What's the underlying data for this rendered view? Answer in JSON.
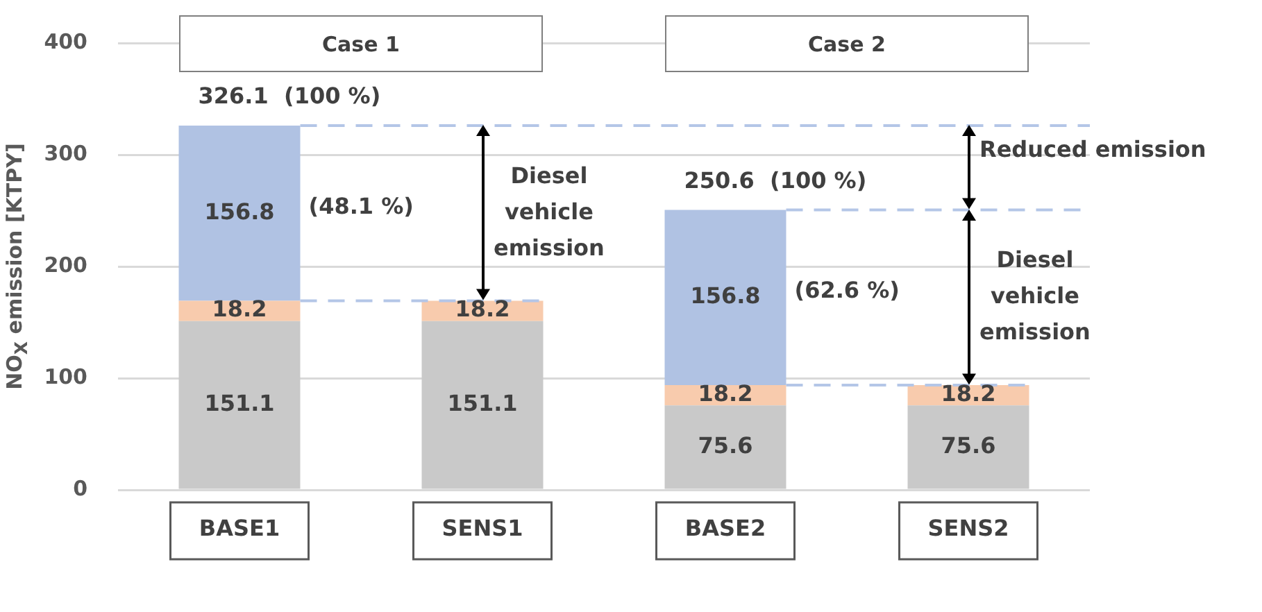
{
  "chart_data": {
    "type": "bar",
    "stacked": true,
    "ylabel": "NO$_{X}$ emission  [KTPY]",
    "categories": [
      "BASE1",
      "SENS1",
      "BASE2",
      "SENS2"
    ],
    "series": [
      {
        "color": "#c9c9c9",
        "values": [
          151.1,
          151.1,
          75.6,
          75.6
        ]
      },
      {
        "color": "#f8cbad",
        "values": [
          18.2,
          18.2,
          18.2,
          18.2
        ]
      },
      {
        "color": "#b0c2e3",
        "values": [
          156.8,
          null,
          156.8,
          null
        ]
      }
    ],
    "ylim": [
      0,
      400
    ],
    "yticks": [
      0,
      100,
      200,
      300,
      400
    ],
    "grid": "y",
    "legend": false,
    "data_labels": true,
    "totals": [
      "326.1  (100 %)",
      null,
      "250.6  (100 %)",
      null
    ],
    "ref_lines": [
      {
        "axis": "y",
        "value": 326.1,
        "color": "#b4c6e7",
        "line_style": "dashed"
      },
      {
        "axis": "y",
        "value": 169.3,
        "color": "#b4c6e7",
        "line_style": "dashed"
      },
      {
        "axis": "y",
        "value": 250.6,
        "color": "#b4c6e7",
        "line_style": "dashed"
      },
      {
        "axis": "y",
        "value": 93.8,
        "color": "#b4c6e7",
        "line_style": "dashed"
      }
    ],
    "annotations": [
      "Case 1",
      "Case 2",
      "(48.1 %)",
      "(62.6 %)",
      "Diesel\nvehicle\nemission",
      "Reduced emission",
      "Diesel\nvehicle\nemission"
    ]
  }
}
